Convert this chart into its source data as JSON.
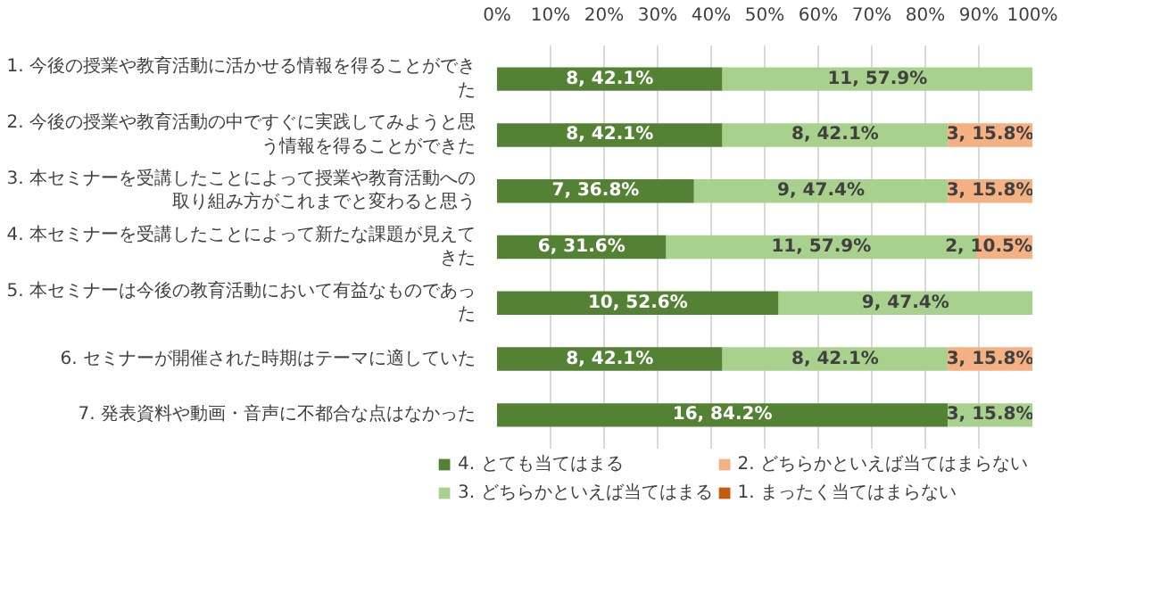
{
  "chart_data": {
    "type": "bar",
    "orientation": "horizontal",
    "stacked": true,
    "categories": [
      "1. 今後の授業や教育活動に活かせる情報を得ることができた",
      "2. 今後の授業や教育活動の中ですぐに実践してみようと思う情報を得ることができた",
      "3. 本セミナーを受講したことによって授業や教育活動への取り組み方がこれまでと変わると思う",
      "4. 本セミナーを受講したことによって新たな課題が見えてきた",
      "5. 本セミナーは今後の教育活動において有益なものであった",
      "6. セミナーが開催された時期はテーマに適していた",
      "7. 発表資料や動画・音声に不都合な点はなかった"
    ],
    "series": [
      {
        "name": "4. とても当てはまる",
        "color": "#548235",
        "values": [
          42.1,
          42.1,
          36.8,
          31.6,
          52.6,
          42.1,
          84.2
        ],
        "value_labels": [
          "8, 42.1%",
          "8, 42.1%",
          "7, 36.8%",
          "6, 31.6%",
          "10, 52.6%",
          "8, 42.1%",
          "16, 84.2%"
        ]
      },
      {
        "name": "3. どちらかといえば当てはまる",
        "color": "#a9d18e",
        "values": [
          57.9,
          42.1,
          47.4,
          57.9,
          47.4,
          42.1,
          15.8
        ],
        "value_labels": [
          "11, 57.9%",
          "8, 42.1%",
          "9, 47.4%",
          "11, 57.9%",
          "9, 47.4%",
          "8, 42.1%",
          "3, 15.8%"
        ]
      },
      {
        "name": "2. どちらかといえば当てはまらない",
        "color": "#f4b183",
        "values": [
          0,
          15.8,
          15.8,
          10.5,
          0,
          15.8,
          0
        ],
        "value_labels": [
          null,
          "3, 15.8%",
          "3, 15.8%",
          "2, 10.5%",
          null,
          "3, 15.8%",
          null
        ]
      },
      {
        "name": "1. まったく当てはまらない",
        "color": "#c55a11",
        "values": [
          0,
          0,
          0,
          0,
          0,
          0,
          0
        ],
        "value_labels": [
          null,
          null,
          null,
          null,
          null,
          null,
          null
        ]
      }
    ],
    "xlim": [
      0,
      100
    ],
    "xticks": [
      {
        "value": 0,
        "label": "0%"
      },
      {
        "value": 10,
        "label": "10%"
      },
      {
        "value": 20,
        "label": "20%"
      },
      {
        "value": 30,
        "label": "30%"
      },
      {
        "value": 40,
        "label": "40%"
      },
      {
        "value": 50,
        "label": "50%"
      },
      {
        "value": 60,
        "label": "60%"
      },
      {
        "value": 70,
        "label": "70%"
      },
      {
        "value": 80,
        "label": "80%"
      },
      {
        "value": 90,
        "label": "90%"
      },
      {
        "value": 100,
        "label": "100%"
      }
    ],
    "grid": "x",
    "legend": "bottom"
  }
}
